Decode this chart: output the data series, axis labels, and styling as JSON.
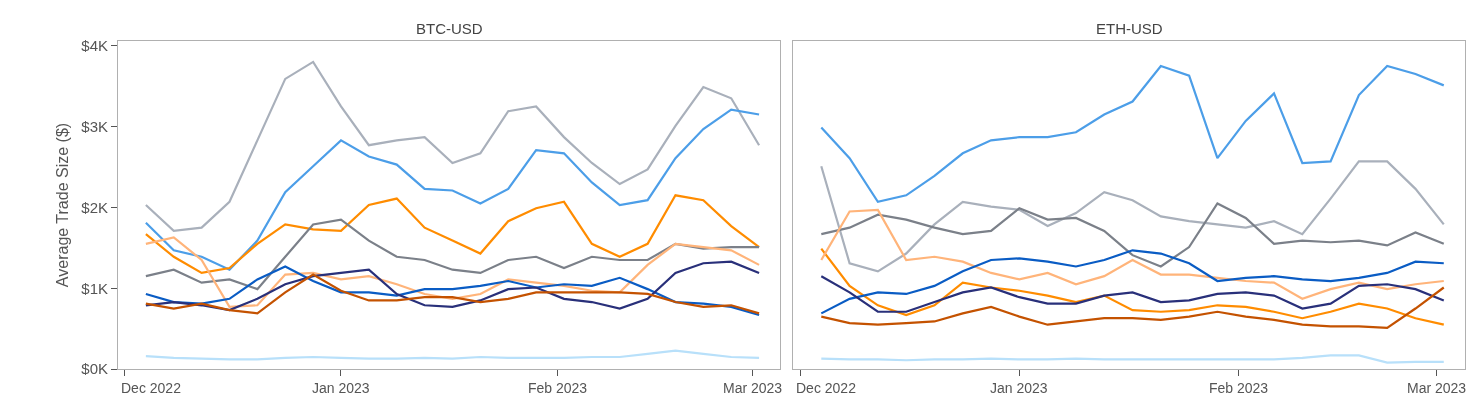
{
  "chart_data": [
    {
      "type": "line",
      "title": "BTC-USD",
      "ylabel": "Average Trade Size ($)",
      "line_style": "solid",
      "xlim": [
        "2022-11-30",
        "2023-03-05"
      ],
      "ylim": [
        0,
        4060
      ],
      "xticks": [
        {
          "value": "2022-12-01",
          "label": "Dec 2022"
        },
        {
          "value": "2023-01-01",
          "label": "Jan 2023"
        },
        {
          "value": "2023-02-01",
          "label": "Feb 2023"
        },
        {
          "value": "2023-03-01",
          "label": "Mar 2023"
        }
      ],
      "yticks": [
        {
          "value": 0,
          "label": "$0K"
        },
        {
          "value": 1000,
          "label": "$1K"
        },
        {
          "value": 2000,
          "label": "$2K"
        },
        {
          "value": 3000,
          "label": "$3K"
        },
        {
          "value": 4000,
          "label": "$4K"
        }
      ],
      "x": [
        "2022-12-04",
        "2022-12-08",
        "2022-12-12",
        "2022-12-16",
        "2022-12-20",
        "2022-12-24",
        "2022-12-28",
        "2023-01-01",
        "2023-01-05",
        "2023-01-09",
        "2023-01-13",
        "2023-01-17",
        "2023-01-21",
        "2023-01-25",
        "2023-01-29",
        "2023-02-02",
        "2023-02-06",
        "2023-02-10",
        "2023-02-14",
        "2023-02-18",
        "2023-02-22",
        "2023-02-26",
        "2023-03-02"
      ],
      "series": [
        {
          "color": "#a9b0bb",
          "values": [
            2030,
            1710,
            1750,
            2070,
            2830,
            3590,
            3800,
            3250,
            2770,
            2830,
            2870,
            2550,
            2670,
            3190,
            3250,
            2870,
            2550,
            2290,
            2470,
            3010,
            3490,
            3350,
            2770
          ]
        },
        {
          "color": "#4c9ee8",
          "values": [
            1810,
            1470,
            1390,
            1230,
            1590,
            2190,
            2510,
            2830,
            2630,
            2530,
            2230,
            2210,
            2050,
            2230,
            2710,
            2670,
            2310,
            2030,
            2090,
            2610,
            2970,
            3210,
            3150
          ]
        },
        {
          "color": "#ff8c00",
          "values": [
            1670,
            1390,
            1190,
            1250,
            1550,
            1790,
            1730,
            1710,
            2030,
            2110,
            1750,
            1590,
            1430,
            1830,
            1990,
            2070,
            1550,
            1390,
            1550,
            2150,
            2090,
            1770,
            1510
          ]
        },
        {
          "color": "#7b8089",
          "values": [
            1150,
            1230,
            1070,
            1110,
            990,
            1390,
            1790,
            1850,
            1590,
            1390,
            1350,
            1230,
            1190,
            1350,
            1390,
            1250,
            1390,
            1350,
            1350,
            1550,
            1490,
            1510,
            1510
          ]
        },
        {
          "color": "#ffb47a",
          "values": [
            1550,
            1630,
            1350,
            770,
            790,
            1170,
            1190,
            1110,
            1150,
            1050,
            930,
            870,
            930,
            1110,
            1070,
            1030,
            970,
            950,
            1290,
            1550,
            1510,
            1470,
            1290
          ]
        },
        {
          "color": "#0a5cc4",
          "values": [
            930,
            830,
            810,
            870,
            1110,
            1270,
            1090,
            950,
            950,
            910,
            990,
            990,
            1030,
            1090,
            1010,
            1050,
            1030,
            1130,
            990,
            830,
            810,
            770,
            670
          ]
        },
        {
          "color": "#29307a",
          "values": [
            790,
            830,
            790,
            730,
            870,
            1050,
            1150,
            1190,
            1230,
            930,
            790,
            770,
            850,
            990,
            1010,
            870,
            830,
            750,
            870,
            1190,
            1310,
            1330,
            1190
          ]
        },
        {
          "color": "#c45200",
          "values": [
            810,
            750,
            810,
            730,
            690,
            950,
            1170,
            970,
            850,
            850,
            890,
            890,
            830,
            870,
            950,
            950,
            950,
            950,
            930,
            830,
            770,
            790,
            690
          ]
        },
        {
          "color": "#b8e0fa",
          "values": [
            160,
            140,
            130,
            120,
            120,
            140,
            150,
            140,
            130,
            130,
            140,
            130,
            150,
            140,
            140,
            140,
            150,
            150,
            190,
            230,
            190,
            150,
            140
          ]
        }
      ]
    },
    {
      "type": "line",
      "title": "ETH-USD",
      "line_style": "solid",
      "tick_labels": "x",
      "xlim": [
        "2022-11-30",
        "2023-03-05"
      ],
      "ylim": [
        0,
        4060
      ],
      "xticks": [
        {
          "value": "2022-12-01",
          "label": "Dec 2022"
        },
        {
          "value": "2023-01-01",
          "label": "Jan 2023"
        },
        {
          "value": "2023-02-01",
          "label": "Feb 2023"
        },
        {
          "value": "2023-03-01",
          "label": "Mar 2023"
        }
      ],
      "x": [
        "2022-12-04",
        "2022-12-08",
        "2022-12-12",
        "2022-12-16",
        "2022-12-20",
        "2022-12-24",
        "2022-12-28",
        "2023-01-01",
        "2023-01-05",
        "2023-01-09",
        "2023-01-13",
        "2023-01-17",
        "2023-01-21",
        "2023-01-25",
        "2023-01-29",
        "2023-02-02",
        "2023-02-06",
        "2023-02-10",
        "2023-02-14",
        "2023-02-18",
        "2023-02-22",
        "2023-02-26",
        "2023-03-02"
      ],
      "series": [
        {
          "color": "#a9b0bb",
          "values": [
            2510,
            1310,
            1210,
            1430,
            1790,
            2070,
            2010,
            1970,
            1770,
            1930,
            2190,
            2090,
            1890,
            1830,
            1790,
            1750,
            1830,
            1670,
            2110,
            2570,
            2570,
            2230,
            1790
          ]
        },
        {
          "color": "#4c9ee8",
          "values": [
            2990,
            2610,
            2070,
            2150,
            2390,
            2670,
            2830,
            2870,
            2870,
            2930,
            3150,
            3310,
            3750,
            3630,
            2610,
            3070,
            3410,
            2550,
            2570,
            3390,
            3750,
            3650,
            3510
          ]
        },
        {
          "color": "#ff8c00",
          "values": [
            1490,
            1030,
            790,
            670,
            790,
            1070,
            1010,
            970,
            910,
            830,
            910,
            730,
            710,
            730,
            790,
            770,
            710,
            630,
            710,
            810,
            750,
            630,
            550
          ]
        },
        {
          "color": "#7b8089",
          "values": [
            1670,
            1750,
            1910,
            1850,
            1750,
            1670,
            1710,
            1990,
            1850,
            1870,
            1710,
            1410,
            1270,
            1510,
            2050,
            1870,
            1550,
            1590,
            1570,
            1590,
            1530,
            1690,
            1550
          ]
        },
        {
          "color": "#ffb47a",
          "values": [
            1350,
            1950,
            1970,
            1350,
            1390,
            1330,
            1190,
            1110,
            1190,
            1050,
            1150,
            1350,
            1170,
            1170,
            1130,
            1090,
            1070,
            870,
            990,
            1070,
            990,
            1050,
            1090
          ]
        },
        {
          "color": "#0a5cc4",
          "values": [
            690,
            870,
            950,
            930,
            1030,
            1210,
            1350,
            1370,
            1330,
            1270,
            1350,
            1470,
            1430,
            1310,
            1090,
            1130,
            1150,
            1110,
            1090,
            1130,
            1190,
            1330,
            1310
          ]
        },
        {
          "color": "#29307a",
          "values": [
            1150,
            950,
            710,
            710,
            830,
            950,
            1010,
            890,
            810,
            810,
            910,
            950,
            830,
            850,
            930,
            950,
            910,
            750,
            810,
            1030,
            1050,
            990,
            850
          ]
        },
        {
          "color": "#c45200",
          "values": [
            650,
            570,
            550,
            570,
            590,
            690,
            770,
            650,
            550,
            590,
            630,
            630,
            610,
            650,
            710,
            650,
            610,
            550,
            530,
            530,
            510,
            750,
            1010
          ]
        },
        {
          "color": "#b8e0fa",
          "values": [
            130,
            120,
            120,
            110,
            120,
            120,
            130,
            120,
            120,
            130,
            120,
            120,
            120,
            120,
            120,
            120,
            120,
            140,
            170,
            170,
            80,
            90,
            90
          ]
        }
      ]
    }
  ]
}
